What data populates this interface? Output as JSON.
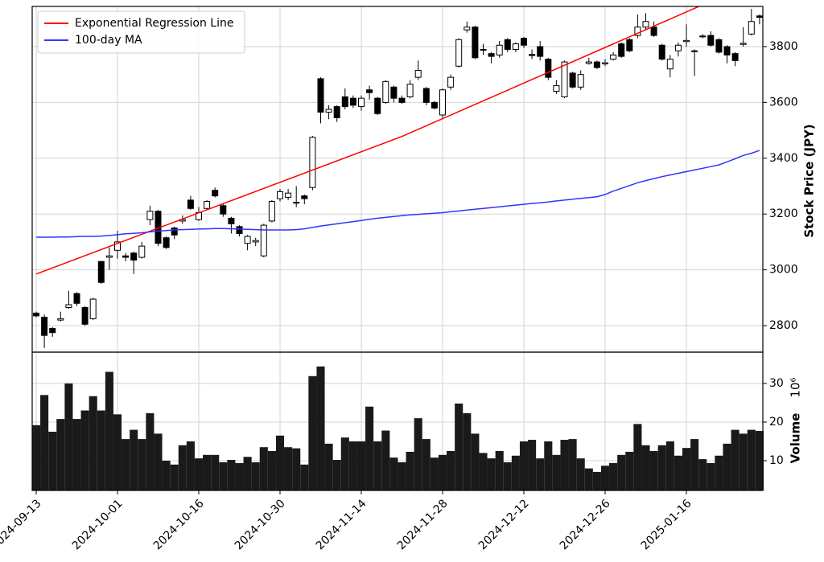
{
  "chart_data": {
    "type": "candlestick",
    "ylabel": "Stock Price (JPY)",
    "categories": [
      "2024-09-13",
      null,
      null,
      null,
      null,
      null,
      null,
      null,
      null,
      null,
      "2024-10-01",
      null,
      null,
      null,
      null,
      null,
      null,
      null,
      null,
      null,
      "2024-10-16",
      null,
      null,
      null,
      null,
      null,
      null,
      null,
      null,
      null,
      "2024-10-30",
      null,
      null,
      null,
      null,
      null,
      null,
      null,
      null,
      null,
      "2024-11-14",
      null,
      null,
      null,
      null,
      null,
      null,
      null,
      null,
      null,
      "2024-11-28",
      null,
      null,
      null,
      null,
      null,
      null,
      null,
      null,
      null,
      "2024-12-12",
      null,
      null,
      null,
      null,
      null,
      null,
      null,
      null,
      null,
      "2024-12-26",
      null,
      null,
      null,
      null,
      null,
      null,
      null,
      null,
      null,
      "2025-01-16",
      null,
      null,
      null,
      null,
      null,
      null,
      null,
      null,
      null
    ],
    "open": [
      2845,
      2830,
      2790,
      2820,
      2865,
      2915,
      2865,
      2825,
      3030,
      3045,
      3070,
      3050,
      3060,
      3045,
      3180,
      3210,
      3115,
      3150,
      3175,
      3250,
      3180,
      3220,
      3285,
      3230,
      3185,
      3155,
      3095,
      3100,
      3050,
      3175,
      3255,
      3260,
      3240,
      3265,
      3295,
      3685,
      3565,
      3585,
      3620,
      3615,
      3585,
      3645,
      3615,
      3600,
      3655,
      3615,
      3620,
      3690,
      3650,
      3600,
      3555,
      3655,
      3730,
      3860,
      3870,
      3790,
      3775,
      3770,
      3825,
      3790,
      3830,
      3772,
      3800,
      3755,
      3640,
      3620,
      3705,
      3655,
      3740,
      3745,
      3738,
      3755,
      3810,
      3825,
      3840,
      3870,
      3870,
      3805,
      3720,
      3785,
      3818,
      3785,
      3835,
      3840,
      3825,
      3800,
      3775,
      3808,
      3845,
      3910
    ],
    "high": [
      2850,
      2840,
      2795,
      2850,
      2925,
      2920,
      2870,
      2900,
      3030,
      3080,
      3140,
      3060,
      3065,
      3100,
      3230,
      3215,
      3120,
      3155,
      3195,
      3265,
      3225,
      3250,
      3295,
      3235,
      3190,
      3160,
      3125,
      3115,
      3165,
      3250,
      3290,
      3290,
      3300,
      3270,
      3480,
      3690,
      3590,
      3590,
      3650,
      3625,
      3625,
      3660,
      3620,
      3680,
      3660,
      3625,
      3680,
      3750,
      3655,
      3605,
      3650,
      3700,
      3830,
      3890,
      3875,
      3810,
      3780,
      3820,
      3830,
      3815,
      3835,
      3790,
      3820,
      3760,
      3680,
      3750,
      3710,
      3715,
      3760,
      3750,
      3755,
      3780,
      3815,
      3830,
      3915,
      3920,
      3890,
      3810,
      3770,
      3815,
      3880,
      3790,
      3845,
      3855,
      3830,
      3805,
      3780,
      3870,
      3935,
      3915
    ],
    "low": [
      2830,
      2720,
      2760,
      2815,
      2860,
      2870,
      2800,
      2820,
      2950,
      3000,
      3040,
      3030,
      2985,
      3040,
      3160,
      3085,
      3075,
      3110,
      3165,
      3215,
      3175,
      3215,
      3260,
      3190,
      3130,
      3120,
      3070,
      3085,
      3045,
      3170,
      3245,
      3250,
      3225,
      3235,
      3285,
      3525,
      3540,
      3530,
      3575,
      3580,
      3570,
      3610,
      3555,
      3595,
      3600,
      3595,
      3615,
      3680,
      3590,
      3575,
      3545,
      3645,
      3725,
      3850,
      3755,
      3770,
      3740,
      3760,
      3780,
      3780,
      3795,
      3755,
      3750,
      3680,
      3630,
      3615,
      3650,
      3645,
      3735,
      3720,
      3730,
      3750,
      3760,
      3780,
      3830,
      3860,
      3835,
      3750,
      3690,
      3765,
      3800,
      3695,
      3830,
      3800,
      3775,
      3740,
      3730,
      3800,
      3840,
      3880
    ],
    "close": [
      2835,
      2765,
      2775,
      2825,
      2875,
      2880,
      2805,
      2895,
      2955,
      3050,
      3100,
      3045,
      3035,
      3085,
      3210,
      3095,
      3080,
      3125,
      3180,
      3220,
      3205,
      3245,
      3265,
      3200,
      3165,
      3130,
      3120,
      3105,
      3160,
      3245,
      3280,
      3275,
      3242,
      3255,
      3475,
      3565,
      3575,
      3545,
      3585,
      3590,
      3615,
      3635,
      3560,
      3675,
      3615,
      3600,
      3665,
      3715,
      3600,
      3580,
      3645,
      3690,
      3825,
      3870,
      3760,
      3788,
      3765,
      3805,
      3790,
      3810,
      3805,
      3768,
      3765,
      3690,
      3660,
      3745,
      3655,
      3700,
      3745,
      3725,
      3742,
      3770,
      3765,
      3785,
      3870,
      3890,
      3840,
      3755,
      3755,
      3805,
      3822,
      3783,
      3838,
      3805,
      3780,
      3770,
      3750,
      3812,
      3890,
      3905
    ],
    "up_color": "#ffffff",
    "down_color": "#000000",
    "ylim": [
      2705,
      3944
    ],
    "yticks": [
      2800,
      3000,
      3200,
      3400,
      3600,
      3800
    ],
    "grid": true,
    "legend_loc": "upper left",
    "lines": [
      {
        "name": "Exponential Regression Line",
        "color": "#ff0000",
        "x": [
          0,
          45,
          89
        ],
        "values": [
          2985,
          3478,
          4039
        ]
      },
      {
        "name": "100-day MA",
        "color": "#3333ff",
        "values": [
          3117,
          3117,
          3117,
          3118,
          3118,
          3119,
          3120,
          3120,
          3121,
          3123,
          3126,
          3129,
          3131,
          3133,
          3136,
          3139,
          3141,
          3143,
          3144,
          3145,
          3146,
          3147,
          3148,
          3148,
          3147,
          3146,
          3145,
          3144,
          3143,
          3143,
          3143,
          3143,
          3144,
          3147,
          3152,
          3157,
          3161,
          3165,
          3169,
          3173,
          3177,
          3181,
          3185,
          3188,
          3191,
          3194,
          3197,
          3199,
          3201,
          3203,
          3205,
          3208,
          3211,
          3214,
          3217,
          3220,
          3223,
          3226,
          3229,
          3232,
          3235,
          3238,
          3240,
          3243,
          3247,
          3250,
          3253,
          3256,
          3259,
          3262,
          3270,
          3282,
          3292,
          3302,
          3312,
          3320,
          3327,
          3334,
          3340,
          3346,
          3352,
          3358,
          3364,
          3370,
          3376,
          3387,
          3398,
          3410,
          3418,
          3428
        ]
      }
    ],
    "volume": {
      "label": "Volume",
      "offset_label": "10⁶",
      "color": "#1a1a1a",
      "ylim": [
        2.3,
        38.1
      ],
      "yticks": [
        10,
        20,
        30
      ],
      "values": [
        19.2,
        27,
        17.5,
        20.8,
        30,
        20.8,
        23,
        26.7,
        23,
        33,
        22,
        15.6,
        18,
        15.6,
        22.3,
        17,
        10,
        9,
        14,
        15,
        10.6,
        11.5,
        11.5,
        9.6,
        10.2,
        9.4,
        11,
        9.6,
        13.5,
        12.5,
        16.5,
        13.5,
        13.2,
        9,
        31.9,
        34.4,
        14.4,
        10.2,
        16,
        15,
        15,
        24,
        15,
        17.8,
        10.8,
        9.6,
        12.3,
        21,
        15.6,
        10.8,
        11.5,
        12.5,
        24.8,
        22.3,
        17,
        12,
        10.6,
        12.5,
        9.6,
        11.3,
        15,
        15.4,
        10.6,
        15,
        11.5,
        15.4,
        15.6,
        10.6,
        8,
        7.1,
        8.7,
        9.4,
        11.5,
        12.3,
        19.5,
        14,
        12.5,
        14,
        15,
        11.3,
        13.3,
        15.6,
        10.4,
        9.4,
        11.3,
        14.4,
        18,
        17,
        18,
        17.7
      ]
    }
  }
}
